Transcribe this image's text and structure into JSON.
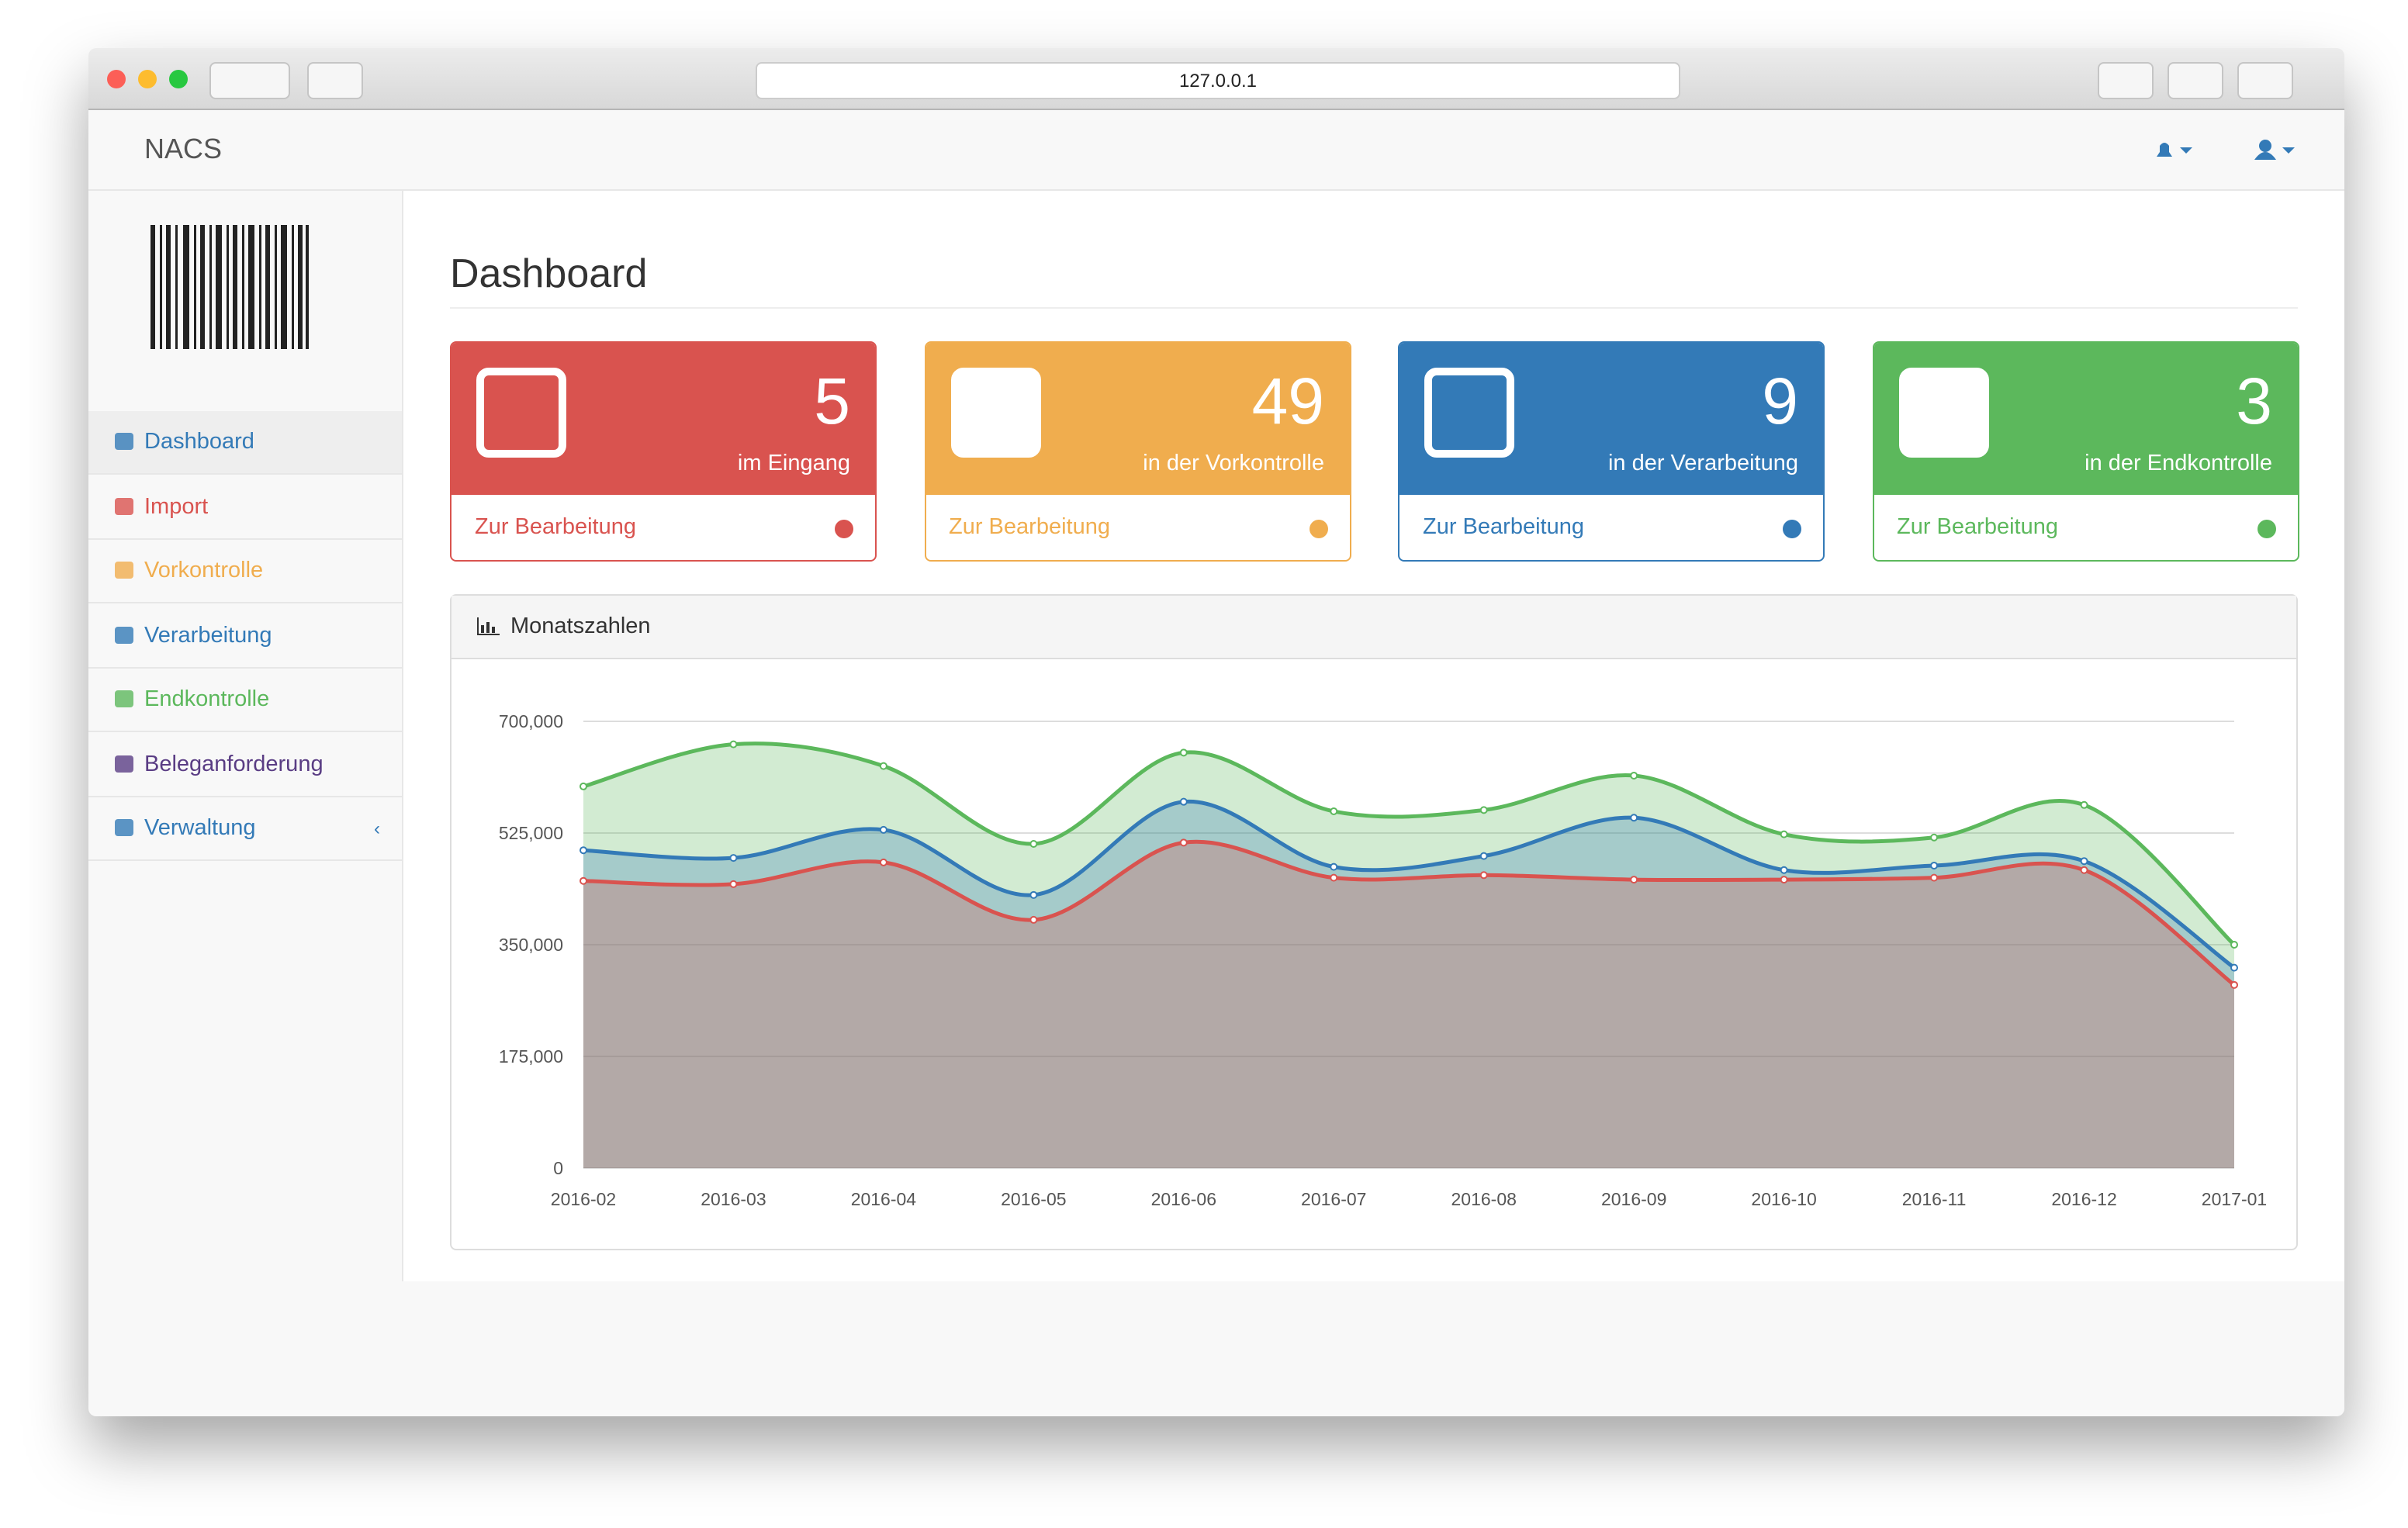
{
  "browser": {
    "url": "127.0.0.1"
  },
  "navbar": {
    "brand": "NACS"
  },
  "sidebar": {
    "items": [
      "Dashboard",
      "Import",
      "Vorkontrolle",
      "Verarbeitung",
      "Endkontrolle",
      "Beleganforderung",
      "Verwaltung"
    ]
  },
  "page": {
    "title": "Dashboard"
  },
  "cards": [
    {
      "count": 5,
      "label": "im Eingang",
      "link": "Zur Bearbeitung",
      "color": "#d9534f"
    },
    {
      "count": 49,
      "label": "in der Vorkontrolle",
      "link": "Zur Bearbeitung",
      "color": "#f0ad4e"
    },
    {
      "count": 9,
      "label": "in der Verarbeitung",
      "link": "Zur Bearbeitung",
      "color": "#337ab7"
    },
    {
      "count": 3,
      "label": "in der Endkontrolle",
      "link": "Zur Bearbeitung",
      "color": "#5cb85c"
    }
  ],
  "chart_panel": {
    "title": "Monatszahlen"
  },
  "chart_data": {
    "type": "area",
    "categories": [
      "2016-02",
      "2016-03",
      "2016-04",
      "2016-05",
      "2016-06",
      "2016-07",
      "2016-08",
      "2016-09",
      "2016-10",
      "2016-11",
      "2016-12",
      "2017-01"
    ],
    "series": [
      {
        "color": "#5cb85c",
        "values": [
          598000,
          664000,
          630000,
          508000,
          651000,
          559000,
          561000,
          615000,
          523000,
          518000,
          569000,
          350000
        ]
      },
      {
        "color": "#337ab7",
        "values": [
          498000,
          486000,
          530000,
          428000,
          574000,
          472000,
          489000,
          549000,
          467000,
          474000,
          481000,
          314000
        ]
      },
      {
        "color": "#d9534f",
        "values": [
          450000,
          445000,
          479000,
          389000,
          510000,
          455000,
          459000,
          452000,
          452000,
          455000,
          467000,
          287000
        ]
      }
    ],
    "ylim": [
      0,
      700000
    ],
    "yticks": [
      0,
      {
        "value": 175000,
        "label": "175,000"
      },
      {
        "value": 350000,
        "label": "350,000"
      },
      {
        "value": 525000,
        "label": "525,000"
      },
      {
        "value": 700000,
        "label": "700,000"
      }
    ],
    "grid": true
  }
}
